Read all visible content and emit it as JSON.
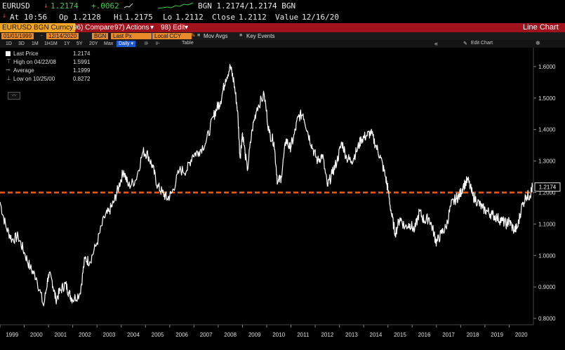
{
  "quote": {
    "ticker": "EURUSD",
    "last": "1.2174",
    "change": "+.0062",
    "source_bid_ask": "BGN 1.2174/1.2174 BGN",
    "at_label": "At",
    "at_time": "10:56",
    "op_label": "Op",
    "op": "1.2128",
    "hi_label": "Hi",
    "hi": "1.2175",
    "lo_label": "Lo",
    "lo": "1.2112",
    "close_label": "Close",
    "close": "1.2112",
    "value_label": "Value",
    "value_date": "12/16/20"
  },
  "toolbar": {
    "security": "EURUSD BGN Curncy",
    "compare": "96) Compare",
    "actions": "97) Actions",
    "edit": "98) Edit",
    "chart_type": "Line Chart",
    "arrow_down": "▾"
  },
  "range_bar": {
    "start_date": "01/01/1999",
    "end_date": "12/14/2020",
    "source": "BGN",
    "field": "Last Px",
    "currency": "Local CCY",
    "mov_avgs": "Mov Avgs",
    "key_events": "Key Events"
  },
  "periods": {
    "items": [
      "1D",
      "3D",
      "1M",
      "1H1M",
      "1Y",
      "5Y",
      "20Y",
      "Max"
    ],
    "frequency": "Daily",
    "table": "Table",
    "edit_chart": "Edit Chart"
  },
  "legend": {
    "last_price_label": "Last Price",
    "last_price": "1.2174",
    "high_label": "High on 04/22/08",
    "high": "1.5991",
    "average_label": "Average",
    "average": "1.1999",
    "low_label": "Low on 10/25/00",
    "low": "0.8272"
  },
  "colors": {
    "price_line": "#ffffff",
    "average_line": "#f05a14",
    "toolbar_red": "#a1121d",
    "positive": "#3ecf42",
    "negative": "#ff3b3b",
    "accent_orange": "#f6a623"
  },
  "chart_data": {
    "type": "line",
    "series": [
      {
        "name": "Last Price",
        "x": [
          1999.0,
          1999.25,
          1999.5,
          1999.75,
          2000.0,
          2000.25,
          2000.5,
          2000.8,
          2001.0,
          2001.15,
          2001.3,
          2001.5,
          2001.7,
          2001.85,
          2002.0,
          2002.3,
          2002.5,
          2002.7,
          2003.0,
          2003.3,
          2003.5,
          2003.7,
          2003.9,
          2004.1,
          2004.3,
          2004.6,
          2004.9,
          2005.1,
          2005.3,
          2005.5,
          2005.7,
          2005.9,
          2006.1,
          2006.4,
          2006.7,
          2006.95,
          2007.2,
          2007.5,
          2007.8,
          2007.95,
          2008.1,
          2008.3,
          2008.5,
          2008.65,
          2008.8,
          2008.9,
          2009.0,
          2009.2,
          2009.4,
          2009.6,
          2009.9,
          2010.1,
          2010.3,
          2010.45,
          2010.6,
          2010.8,
          2010.95,
          2011.1,
          2011.3,
          2011.5,
          2011.7,
          2011.9,
          2012.1,
          2012.3,
          2012.5,
          2012.7,
          2012.9,
          2013.1,
          2013.3,
          2013.5,
          2013.7,
          2013.9,
          2014.1,
          2014.3,
          2014.5,
          2014.7,
          2014.9,
          2015.0,
          2015.15,
          2015.3,
          2015.5,
          2015.7,
          2015.9,
          2016.1,
          2016.3,
          2016.5,
          2016.7,
          2016.9,
          2017.0,
          2017.2,
          2017.4,
          2017.6,
          2017.8,
          2017.95,
          2018.1,
          2018.3,
          2018.5,
          2018.7,
          2018.9,
          2019.1,
          2019.3,
          2019.5,
          2019.7,
          2019.9,
          2020.0,
          2020.2,
          2020.35,
          2020.5,
          2020.7,
          2020.85,
          2020.96
        ],
        "y": [
          1.17,
          1.09,
          1.05,
          1.06,
          1.01,
          0.96,
          0.93,
          0.84,
          0.94,
          0.92,
          0.86,
          0.89,
          0.91,
          0.88,
          0.86,
          0.88,
          0.99,
          0.98,
          1.04,
          1.12,
          1.14,
          1.17,
          1.22,
          1.27,
          1.22,
          1.24,
          1.33,
          1.32,
          1.28,
          1.22,
          1.2,
          1.18,
          1.2,
          1.27,
          1.27,
          1.32,
          1.33,
          1.36,
          1.44,
          1.47,
          1.49,
          1.56,
          1.6,
          1.55,
          1.46,
          1.31,
          1.39,
          1.27,
          1.4,
          1.47,
          1.51,
          1.39,
          1.36,
          1.23,
          1.25,
          1.37,
          1.34,
          1.37,
          1.44,
          1.45,
          1.39,
          1.34,
          1.3,
          1.32,
          1.22,
          1.26,
          1.3,
          1.36,
          1.31,
          1.3,
          1.33,
          1.37,
          1.38,
          1.39,
          1.35,
          1.31,
          1.25,
          1.21,
          1.13,
          1.07,
          1.12,
          1.09,
          1.1,
          1.08,
          1.14,
          1.11,
          1.12,
          1.07,
          1.04,
          1.07,
          1.09,
          1.16,
          1.18,
          1.19,
          1.22,
          1.24,
          1.19,
          1.17,
          1.15,
          1.14,
          1.13,
          1.12,
          1.11,
          1.1,
          1.11,
          1.08,
          1.09,
          1.15,
          1.19,
          1.19,
          1.2174
        ]
      },
      {
        "name": "Average",
        "y": 1.1999
      }
    ],
    "x_ticks": [
      "1999",
      "2000",
      "2001",
      "2002",
      "2003",
      "2004",
      "2005",
      "2006",
      "2007",
      "2008",
      "2009",
      "2010",
      "2011",
      "2012",
      "2013",
      "2014",
      "2015",
      "2016",
      "2017",
      "2018",
      "2019",
      "2020"
    ],
    "y_ticks": [
      "0.8000",
      "0.9000",
      "1.0000",
      "1.1000",
      "1.2000",
      "1.3000",
      "1.4000",
      "1.5000",
      "1.6000"
    ],
    "ylim": [
      0.78,
      1.66
    ],
    "xlim": [
      1999.0,
      2021.0
    ],
    "last_value_label": "1.2174",
    "average_line_style": "dashed",
    "grid": false,
    "legend_position": "top-left"
  }
}
